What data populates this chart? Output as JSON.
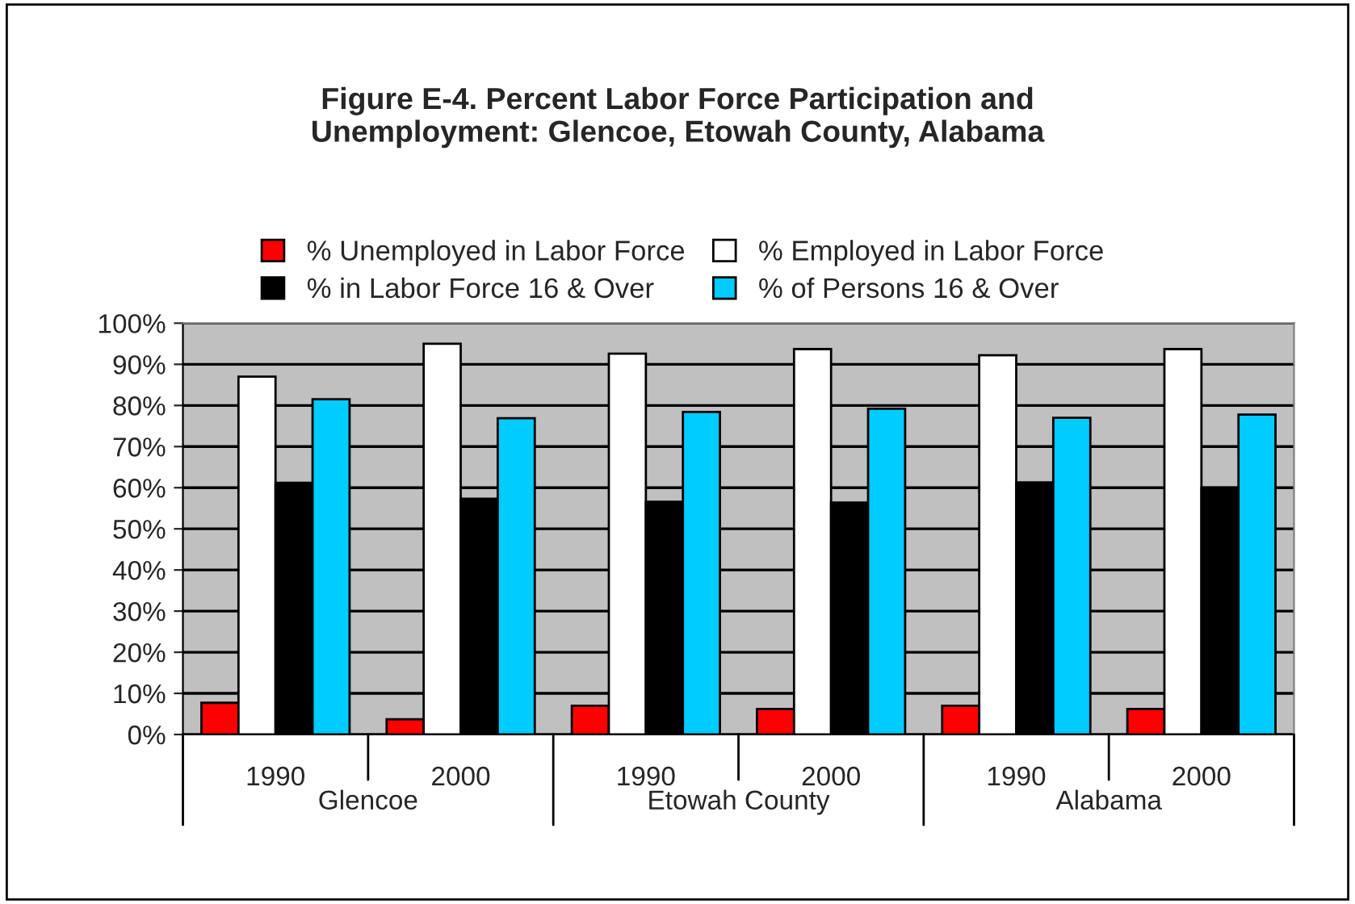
{
  "chart_data": {
    "type": "bar",
    "title": "Figure E-4. Percent Labor Force Participation and\nUnemployment: Glencoe, Etowah County, Alabama",
    "categories": [
      "1990",
      "2000",
      "1990",
      "2000",
      "1990",
      "2000"
    ],
    "annotations": [
      "Glencoe",
      "Etowah County",
      "Alabama"
    ],
    "series": [
      {
        "name": "% Unemployed in Labor Force",
        "color": "#ff0000",
        "values": [
          7.7,
          3.7,
          7.0,
          6.2,
          7.0,
          6.2
        ]
      },
      {
        "name": "% Employed in Labor Force",
        "color": "#ffffff",
        "values": [
          87.0,
          95.0,
          92.6,
          93.7,
          92.2,
          93.7
        ]
      },
      {
        "name": "% in Labor Force 16 & Over",
        "color": "#000000",
        "values": [
          61.2,
          57.3,
          56.6,
          56.4,
          61.3,
          60.0
        ]
      },
      {
        "name": "% of Persons 16 & Over",
        "color": "#00ccff",
        "values": [
          81.5,
          76.9,
          78.4,
          79.2,
          77.0,
          77.8
        ]
      }
    ],
    "ylim": [
      0,
      100
    ],
    "yticks": [
      {
        "value": 0,
        "label": "0%"
      },
      {
        "value": 10,
        "label": "10%"
      },
      {
        "value": 20,
        "label": "20%"
      },
      {
        "value": 30,
        "label": "30%"
      },
      {
        "value": 40,
        "label": "40%"
      },
      {
        "value": 50,
        "label": "50%"
      },
      {
        "value": 60,
        "label": "60%"
      },
      {
        "value": 70,
        "label": "70%"
      },
      {
        "value": 80,
        "label": "80%"
      },
      {
        "value": 90,
        "label": "90%"
      },
      {
        "value": 100,
        "label": "100%"
      }
    ],
    "grid": "y",
    "legend": "top"
  }
}
